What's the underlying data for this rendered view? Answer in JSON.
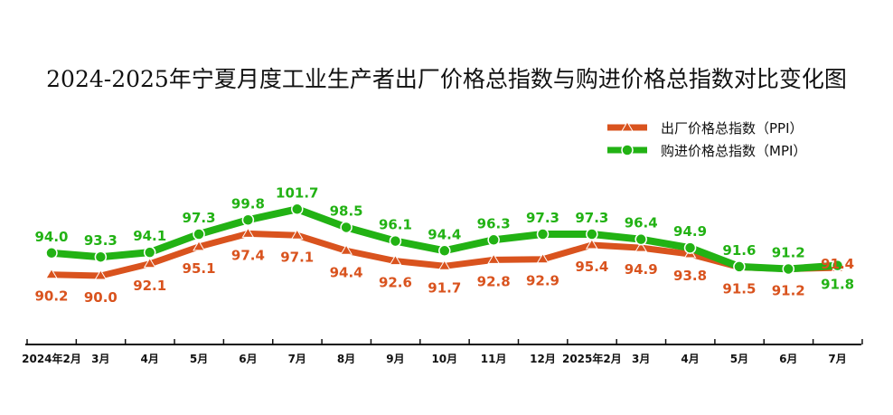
{
  "chart_data": {
    "type": "line",
    "title": "2024-2025年宁夏月度工业生产者出厂价格总指数与购进价格总指数对比变化图",
    "categories": [
      "2024年2月",
      "3月",
      "4月",
      "5月",
      "6月",
      "7月",
      "8月",
      "9月",
      "10月",
      "11月",
      "12月",
      "2025年2月",
      "3月",
      "4月",
      "5月",
      "6月",
      "7月"
    ],
    "series": [
      {
        "name": "出厂价格总指数（PPI）",
        "values": [
          90.2,
          90.0,
          92.1,
          95.1,
          97.4,
          97.1,
          94.4,
          92.6,
          91.7,
          92.8,
          92.9,
          95.4,
          94.9,
          93.8,
          91.5,
          91.2,
          91.4
        ],
        "labels": [
          "90.2",
          "90.0",
          "92.1",
          "95.1",
          "97.4",
          "97.1",
          "94.4",
          "92.6",
          "91.7",
          "92.8",
          "92.9",
          "95.4",
          "94.9",
          "93.8",
          "91.5",
          "91.2",
          "91.4"
        ],
        "color": "#d9531e",
        "marker": "triangle"
      },
      {
        "name": "购进价格总指数（MPI）",
        "values": [
          94.0,
          93.3,
          94.1,
          97.3,
          99.8,
          101.7,
          98.5,
          96.1,
          94.4,
          96.3,
          97.3,
          97.3,
          96.4,
          94.9,
          91.6,
          91.2,
          91.8
        ],
        "labels": [
          "94.0",
          "93.3",
          "94.1",
          "97.3",
          "99.8",
          "101.7",
          "98.5",
          "96.1",
          "94.4",
          "96.3",
          "97.3",
          "97.3",
          "96.4",
          "94.9",
          "91.6",
          "91.2",
          "91.8"
        ],
        "color": "#22b214",
        "marker": "circle"
      }
    ],
    "legend_position": "top-right",
    "grid": false
  }
}
